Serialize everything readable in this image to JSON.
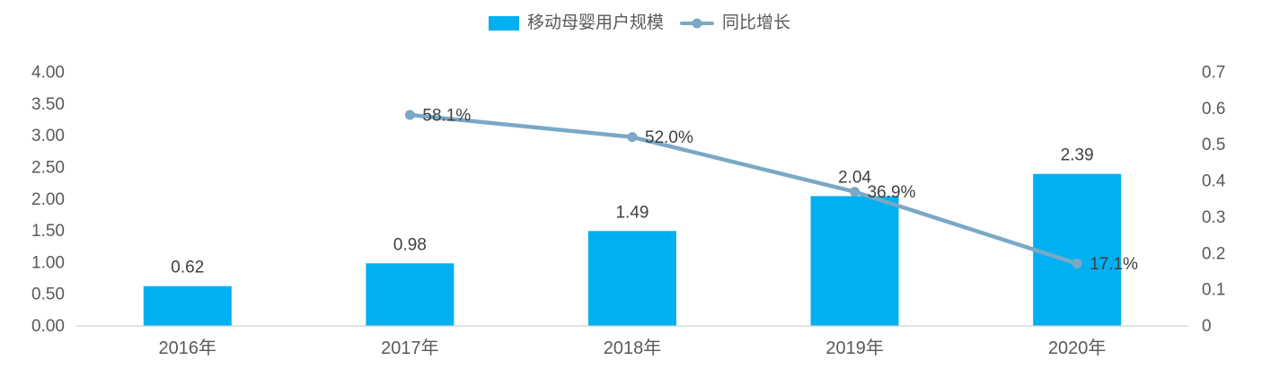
{
  "legend": {
    "bar_label": "移动母婴用户规模",
    "line_label": "同比增长"
  },
  "colors": {
    "bar": "#00b0f0",
    "line": "#7aa8c6",
    "axis_line": "#d9d9d9",
    "axis_text": "#595959",
    "data_label": "#404040"
  },
  "chart_data": {
    "type": "bar",
    "subtype": "bar-with-line-overlay",
    "title": "",
    "xlabel": "",
    "ylabel": "",
    "grid": false,
    "legend_position": "top-center",
    "categories": [
      "2016年",
      "2017年",
      "2018年",
      "2019年",
      "2020年"
    ],
    "series": [
      {
        "name": "移动母婴用户规模",
        "type": "bar",
        "axis": "left",
        "values": [
          0.62,
          0.98,
          1.49,
          2.04,
          2.39
        ],
        "labels": [
          "0.62",
          "0.98",
          "1.49",
          "2.04",
          "2.39"
        ]
      },
      {
        "name": "同比增长",
        "type": "line",
        "axis": "right",
        "values": [
          null,
          0.581,
          0.52,
          0.369,
          0.171
        ],
        "labels": [
          "",
          "58.1%",
          "52.0%",
          "36.9%",
          "17.1%"
        ]
      }
    ],
    "left_axis": {
      "min": 0,
      "max": 4,
      "ticks": [
        "0.00",
        "0.50",
        "1.00",
        "1.50",
        "2.00",
        "2.50",
        "3.00",
        "3.50",
        "4.00"
      ]
    },
    "right_axis": {
      "min": 0,
      "max": 0.7,
      "ticks": [
        "0",
        "0.1",
        "0.2",
        "0.3",
        "0.4",
        "0.5",
        "0.6",
        "0.7"
      ]
    }
  }
}
